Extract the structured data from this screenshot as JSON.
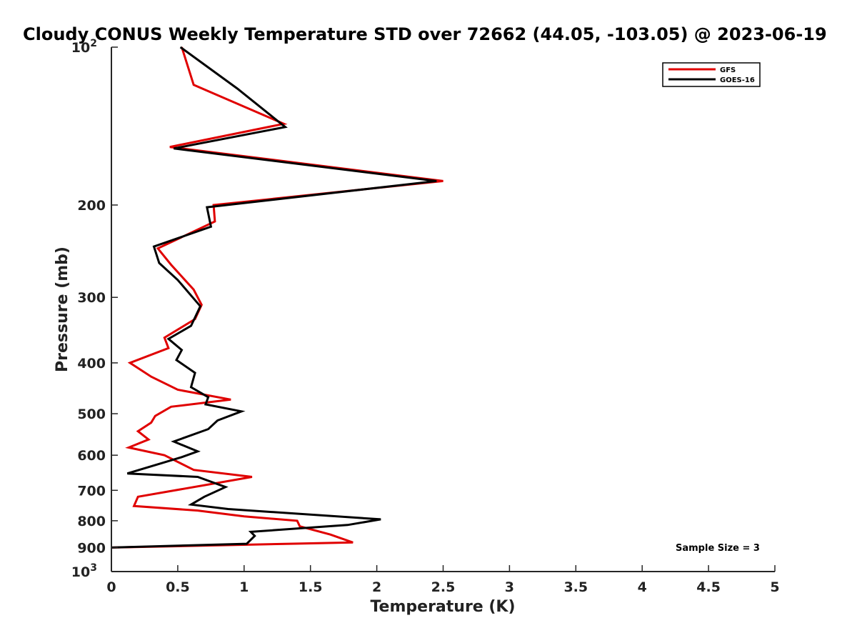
{
  "chart_data": {
    "type": "line",
    "title": "Cloudy CONUS Weekly Temperature STD over 72662 (44.05, -103.05) @ 2023-06-19",
    "xlabel": "Temperature (K)",
    "ylabel": "Pressure (mb)",
    "xlim": [
      0,
      5
    ],
    "ylim": [
      1000,
      100
    ],
    "y_scale": "log",
    "y_reversed": true,
    "grid": false,
    "legend_position": "top-right",
    "x_ticks": [
      "0",
      "0.5",
      "1",
      "1.5",
      "2",
      "2.5",
      "3",
      "3.5",
      "4",
      "4.5",
      "5"
    ],
    "x_tick_values": [
      0,
      0.5,
      1,
      1.5,
      2,
      2.5,
      3,
      3.5,
      4,
      4.5,
      5
    ],
    "y_ticks": [
      {
        "value": 100,
        "label": "10",
        "sup": "2"
      },
      {
        "value": 200,
        "label": "200",
        "sup": ""
      },
      {
        "value": 300,
        "label": "300",
        "sup": ""
      },
      {
        "value": 400,
        "label": "400",
        "sup": ""
      },
      {
        "value": 500,
        "label": "500",
        "sup": ""
      },
      {
        "value": 600,
        "label": "600",
        "sup": ""
      },
      {
        "value": 700,
        "label": "700",
        "sup": ""
      },
      {
        "value": 800,
        "label": "800",
        "sup": ""
      },
      {
        "value": 900,
        "label": "900",
        "sup": ""
      },
      {
        "value": 1000,
        "label": "10",
        "sup": "3"
      }
    ],
    "series": [
      {
        "name": "GFS",
        "color": "#e00000",
        "points": [
          [
            0.53,
            100
          ],
          [
            0.62,
            118
          ],
          [
            1.3,
            140
          ],
          [
            0.44,
            155
          ],
          [
            2.5,
            180
          ],
          [
            0.77,
            200
          ],
          [
            0.78,
            215
          ],
          [
            0.35,
            242
          ],
          [
            0.45,
            260
          ],
          [
            0.62,
            290
          ],
          [
            0.68,
            310
          ],
          [
            0.63,
            330
          ],
          [
            0.4,
            358
          ],
          [
            0.43,
            375
          ],
          [
            0.14,
            400
          ],
          [
            0.3,
            425
          ],
          [
            0.5,
            450
          ],
          [
            0.9,
            470
          ],
          [
            0.45,
            485
          ],
          [
            0.33,
            505
          ],
          [
            0.3,
            520
          ],
          [
            0.2,
            540
          ],
          [
            0.28,
            560
          ],
          [
            0.13,
            580
          ],
          [
            0.4,
            600
          ],
          [
            0.62,
            640
          ],
          [
            1.06,
            660
          ],
          [
            0.2,
            720
          ],
          [
            0.17,
            750
          ],
          [
            0.65,
            765
          ],
          [
            1.0,
            785
          ],
          [
            1.4,
            800
          ],
          [
            1.42,
            820
          ],
          [
            1.65,
            850
          ],
          [
            1.82,
            880
          ],
          [
            0.0,
            900
          ]
        ]
      },
      {
        "name": "GOES-16",
        "color": "#000000",
        "points": [
          [
            0.52,
            100
          ],
          [
            0.95,
            120
          ],
          [
            1.31,
            142
          ],
          [
            0.47,
            156
          ],
          [
            2.45,
            180
          ],
          [
            0.72,
            202
          ],
          [
            0.75,
            220
          ],
          [
            0.32,
            240
          ],
          [
            0.36,
            258
          ],
          [
            0.5,
            278
          ],
          [
            0.67,
            312
          ],
          [
            0.6,
            340
          ],
          [
            0.43,
            360
          ],
          [
            0.53,
            378
          ],
          [
            0.49,
            395
          ],
          [
            0.63,
            418
          ],
          [
            0.6,
            445
          ],
          [
            0.73,
            465
          ],
          [
            0.71,
            480
          ],
          [
            0.98,
            495
          ],
          [
            0.8,
            515
          ],
          [
            0.73,
            535
          ],
          [
            0.47,
            565
          ],
          [
            0.65,
            590
          ],
          [
            0.53,
            605
          ],
          [
            0.12,
            650
          ],
          [
            0.65,
            660
          ],
          [
            0.86,
            690
          ],
          [
            0.7,
            720
          ],
          [
            0.6,
            745
          ],
          [
            0.88,
            760
          ],
          [
            2.03,
            795
          ],
          [
            1.78,
            815
          ],
          [
            1.05,
            840
          ],
          [
            1.08,
            855
          ],
          [
            1.02,
            885
          ],
          [
            0.0,
            900
          ]
        ]
      }
    ],
    "annotation": "Sample Size = 3"
  }
}
